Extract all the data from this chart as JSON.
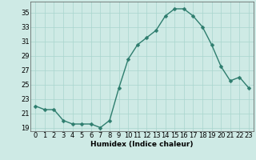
{
  "x": [
    0,
    1,
    2,
    3,
    4,
    5,
    6,
    7,
    8,
    9,
    10,
    11,
    12,
    13,
    14,
    15,
    16,
    17,
    18,
    19,
    20,
    21,
    22,
    23
  ],
  "y": [
    22,
    21.5,
    21.5,
    20,
    19.5,
    19.5,
    19.5,
    19,
    20,
    24.5,
    28.5,
    30.5,
    31.5,
    32.5,
    34.5,
    35.5,
    35.5,
    34.5,
    33,
    30.5,
    27.5,
    25.5,
    26,
    24.5
  ],
  "line_color": "#2e7d6e",
  "marker_color": "#2e7d6e",
  "bg_color": "#ceeae5",
  "grid_color": "#a8d5ce",
  "xlabel": "Humidex (Indice chaleur)",
  "ylabel": "",
  "ylim": [
    18.5,
    36.5
  ],
  "xlim": [
    -0.5,
    23.5
  ],
  "yticks": [
    19,
    21,
    23,
    25,
    27,
    29,
    31,
    33,
    35
  ],
  "xticks": [
    0,
    1,
    2,
    3,
    4,
    5,
    6,
    7,
    8,
    9,
    10,
    11,
    12,
    13,
    14,
    15,
    16,
    17,
    18,
    19,
    20,
    21,
    22,
    23
  ],
  "xlabel_fontsize": 6.5,
  "tick_fontsize": 6,
  "line_width": 1.0,
  "marker_size": 2.5
}
